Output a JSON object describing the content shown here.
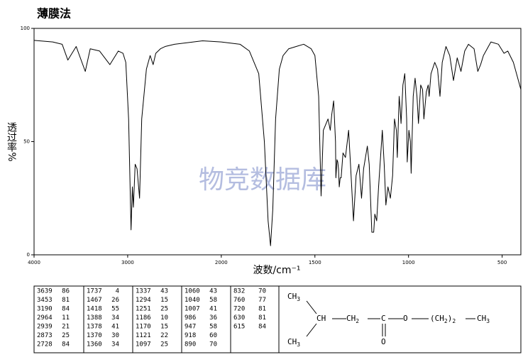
{
  "chart_data": {
    "type": "line",
    "title": "薄膜法",
    "x_label": "波数/cm⁻¹",
    "y_label": "透过率%",
    "watermark": "物竞数据库",
    "xlim": [
      4000,
      400
    ],
    "x_expand_below": {
      "at": 2000,
      "factor": 2
    },
    "ylim": [
      0,
      100
    ],
    "xticks": [
      4000,
      3000,
      2000,
      1500,
      1000,
      500
    ],
    "yticks": [
      0,
      50,
      100
    ],
    "series": [
      {
        "color": "#000000",
        "x": [
          4000,
          3800,
          3700,
          3639,
          3550,
          3453,
          3400,
          3300,
          3190,
          3100,
          3050,
          3020,
          2990,
          2964,
          2950,
          2939,
          2920,
          2900,
          2873,
          2850,
          2800,
          2760,
          2728,
          2700,
          2650,
          2600,
          2500,
          2300,
          2200,
          2000,
          1900,
          1850,
          1800,
          1770,
          1750,
          1737,
          1725,
          1710,
          1690,
          1670,
          1640,
          1600,
          1560,
          1520,
          1500,
          1480,
          1467,
          1455,
          1440,
          1430,
          1418,
          1410,
          1400,
          1390,
          1388,
          1382,
          1378,
          1374,
          1370,
          1365,
          1360,
          1350,
          1337,
          1320,
          1310,
          1294,
          1280,
          1265,
          1251,
          1240,
          1220,
          1210,
          1196,
          1186,
          1180,
          1170,
          1160,
          1140,
          1130,
          1121,
          1110,
          1097,
          1085,
          1075,
          1065,
          1060,
          1050,
          1045,
          1040,
          1030,
          1020,
          1010,
          1007,
          998,
          990,
          986,
          975,
          965,
          955,
          947,
          935,
          925,
          918,
          905,
          895,
          890,
          880,
          860,
          845,
          832,
          820,
          800,
          780,
          760,
          740,
          720,
          700,
          680,
          650,
          630,
          615,
          600,
          560,
          520,
          490,
          470,
          440,
          400
        ],
        "values": [
          94.7,
          94,
          93,
          86,
          92,
          81,
          91,
          90,
          84,
          90,
          89,
          85,
          60,
          11,
          30,
          21,
          40,
          38,
          25,
          60,
          82,
          88,
          84,
          89,
          91,
          92,
          93,
          94,
          94.5,
          94,
          93,
          90,
          80,
          50,
          15,
          4,
          20,
          60,
          82,
          88,
          91,
          92,
          93,
          91,
          88,
          70,
          26,
          55,
          58,
          60,
          55,
          62,
          68,
          50,
          34,
          42,
          41,
          38,
          30,
          34,
          34,
          45,
          43,
          55,
          40,
          15,
          35,
          40,
          25,
          38,
          48,
          40,
          10,
          10,
          18,
          15,
          30,
          55,
          40,
          22,
          30,
          25,
          35,
          60,
          55,
          43,
          70,
          65,
          58,
          75,
          80,
          60,
          41,
          55,
          50,
          36,
          70,
          78,
          70,
          58,
          75,
          73,
          60,
          72,
          75,
          70,
          80,
          85,
          82,
          70,
          85,
          92,
          88,
          77,
          87,
          81,
          90,
          93,
          91,
          81,
          84,
          88,
          94,
          93,
          89,
          90,
          85,
          73
        ]
      }
    ]
  },
  "peak_table": {
    "columns": [
      [
        [
          3639,
          86
        ],
        [
          3453,
          81
        ],
        [
          3190,
          84
        ],
        [
          2964,
          11
        ],
        [
          2939,
          21
        ],
        [
          2873,
          25
        ],
        [
          2728,
          84
        ]
      ],
      [
        [
          1737,
          4
        ],
        [
          1467,
          26
        ],
        [
          1418,
          55
        ],
        [
          1388,
          34
        ],
        [
          1378,
          41
        ],
        [
          1370,
          30
        ],
        [
          1360,
          34
        ]
      ],
      [
        [
          1337,
          43
        ],
        [
          1294,
          15
        ],
        [
          1251,
          25
        ],
        [
          1186,
          10
        ],
        [
          1170,
          15
        ],
        [
          1121,
          22
        ],
        [
          1097,
          25
        ]
      ],
      [
        [
          1060,
          43
        ],
        [
          1040,
          58
        ],
        [
          1007,
          41
        ],
        [
          986,
          36
        ],
        [
          947,
          58
        ],
        [
          918,
          60
        ],
        [
          890,
          70
        ]
      ],
      [
        [
          832,
          70
        ],
        [
          760,
          77
        ],
        [
          720,
          81
        ],
        [
          630,
          81
        ],
        [
          615,
          84
        ]
      ]
    ]
  },
  "structure": {
    "groups": [
      [
        "CH",
        "3"
      ],
      [
        "CH",
        "3"
      ],
      [
        "CH"
      ],
      [
        "CH",
        "2"
      ],
      [
        "C"
      ],
      [
        "O"
      ],
      [
        "O"
      ],
      [
        "(CH",
        "2",
        ")",
        "2"
      ],
      [
        "CH",
        "3"
      ]
    ]
  }
}
